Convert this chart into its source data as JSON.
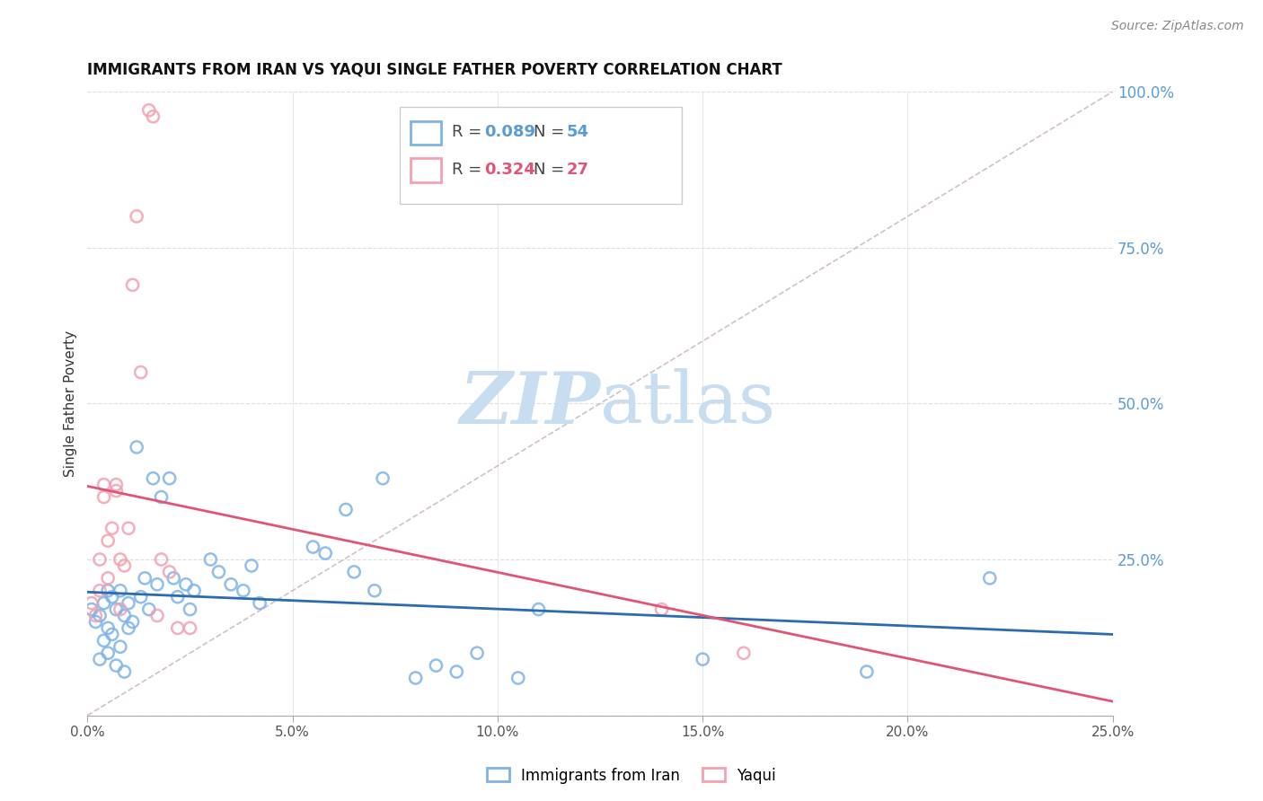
{
  "title": "IMMIGRANTS FROM IRAN VS YAQUI SINGLE FATHER POVERTY CORRELATION CHART",
  "source": "Source: ZipAtlas.com",
  "ylabel": "Single Father Poverty",
  "xlim": [
    0.0,
    0.25
  ],
  "ylim": [
    0.0,
    1.0
  ],
  "xtick_labels": [
    "0.0%",
    "5.0%",
    "10.0%",
    "15.0%",
    "20.0%",
    "25.0%"
  ],
  "iran_R": 0.089,
  "iran_N": 54,
  "yaqui_R": 0.324,
  "yaqui_N": 27,
  "iran_color": "#7eb3e8",
  "yaqui_color": "#f4a0b0",
  "iran_line_color": "#2b6cb0",
  "yaqui_line_color": "#e05575",
  "ref_line_color": "#c8b0b8",
  "watermark_zip": "ZIP",
  "watermark_atlas": "atlas",
  "watermark_color_zip": "#c8ddf0",
  "watermark_color_atlas": "#c8ddf0",
  "background_color": "#ffffff",
  "grid_color": "#dddddd",
  "iran_x": [
    0.001,
    0.002,
    0.003,
    0.003,
    0.004,
    0.004,
    0.005,
    0.005,
    0.005,
    0.006,
    0.006,
    0.007,
    0.007,
    0.008,
    0.008,
    0.009,
    0.009,
    0.01,
    0.01,
    0.011,
    0.012,
    0.013,
    0.014,
    0.015,
    0.016,
    0.017,
    0.018,
    0.02,
    0.021,
    0.022,
    0.024,
    0.025,
    0.026,
    0.03,
    0.032,
    0.035,
    0.038,
    0.04,
    0.042,
    0.055,
    0.058,
    0.063,
    0.065,
    0.07,
    0.072,
    0.08,
    0.085,
    0.09,
    0.095,
    0.105,
    0.11,
    0.15,
    0.19,
    0.22
  ],
  "iran_y": [
    0.17,
    0.15,
    0.16,
    0.09,
    0.18,
    0.12,
    0.2,
    0.14,
    0.1,
    0.19,
    0.13,
    0.17,
    0.08,
    0.2,
    0.11,
    0.16,
    0.07,
    0.18,
    0.14,
    0.15,
    0.43,
    0.19,
    0.22,
    0.17,
    0.38,
    0.21,
    0.35,
    0.38,
    0.22,
    0.19,
    0.21,
    0.17,
    0.2,
    0.25,
    0.23,
    0.21,
    0.2,
    0.24,
    0.18,
    0.27,
    0.26,
    0.33,
    0.23,
    0.2,
    0.38,
    0.06,
    0.08,
    0.07,
    0.1,
    0.06,
    0.17,
    0.09,
    0.07,
    0.22
  ],
  "yaqui_x": [
    0.001,
    0.002,
    0.003,
    0.003,
    0.004,
    0.004,
    0.005,
    0.005,
    0.006,
    0.007,
    0.007,
    0.008,
    0.008,
    0.009,
    0.01,
    0.011,
    0.012,
    0.013,
    0.015,
    0.016,
    0.017,
    0.018,
    0.02,
    0.022,
    0.025,
    0.14,
    0.16
  ],
  "yaqui_y": [
    0.18,
    0.16,
    0.25,
    0.2,
    0.35,
    0.37,
    0.28,
    0.22,
    0.3,
    0.37,
    0.36,
    0.25,
    0.17,
    0.24,
    0.3,
    0.69,
    0.8,
    0.55,
    0.97,
    0.96,
    0.16,
    0.25,
    0.23,
    0.14,
    0.14,
    0.17,
    0.1
  ],
  "legend_iran_color": "#5b9bd5",
  "legend_yaqui_color": "#e05575",
  "title_color": "#111111",
  "source_color": "#888888",
  "axis_label_color": "#333333",
  "right_tick_color": "#5b9bd5"
}
